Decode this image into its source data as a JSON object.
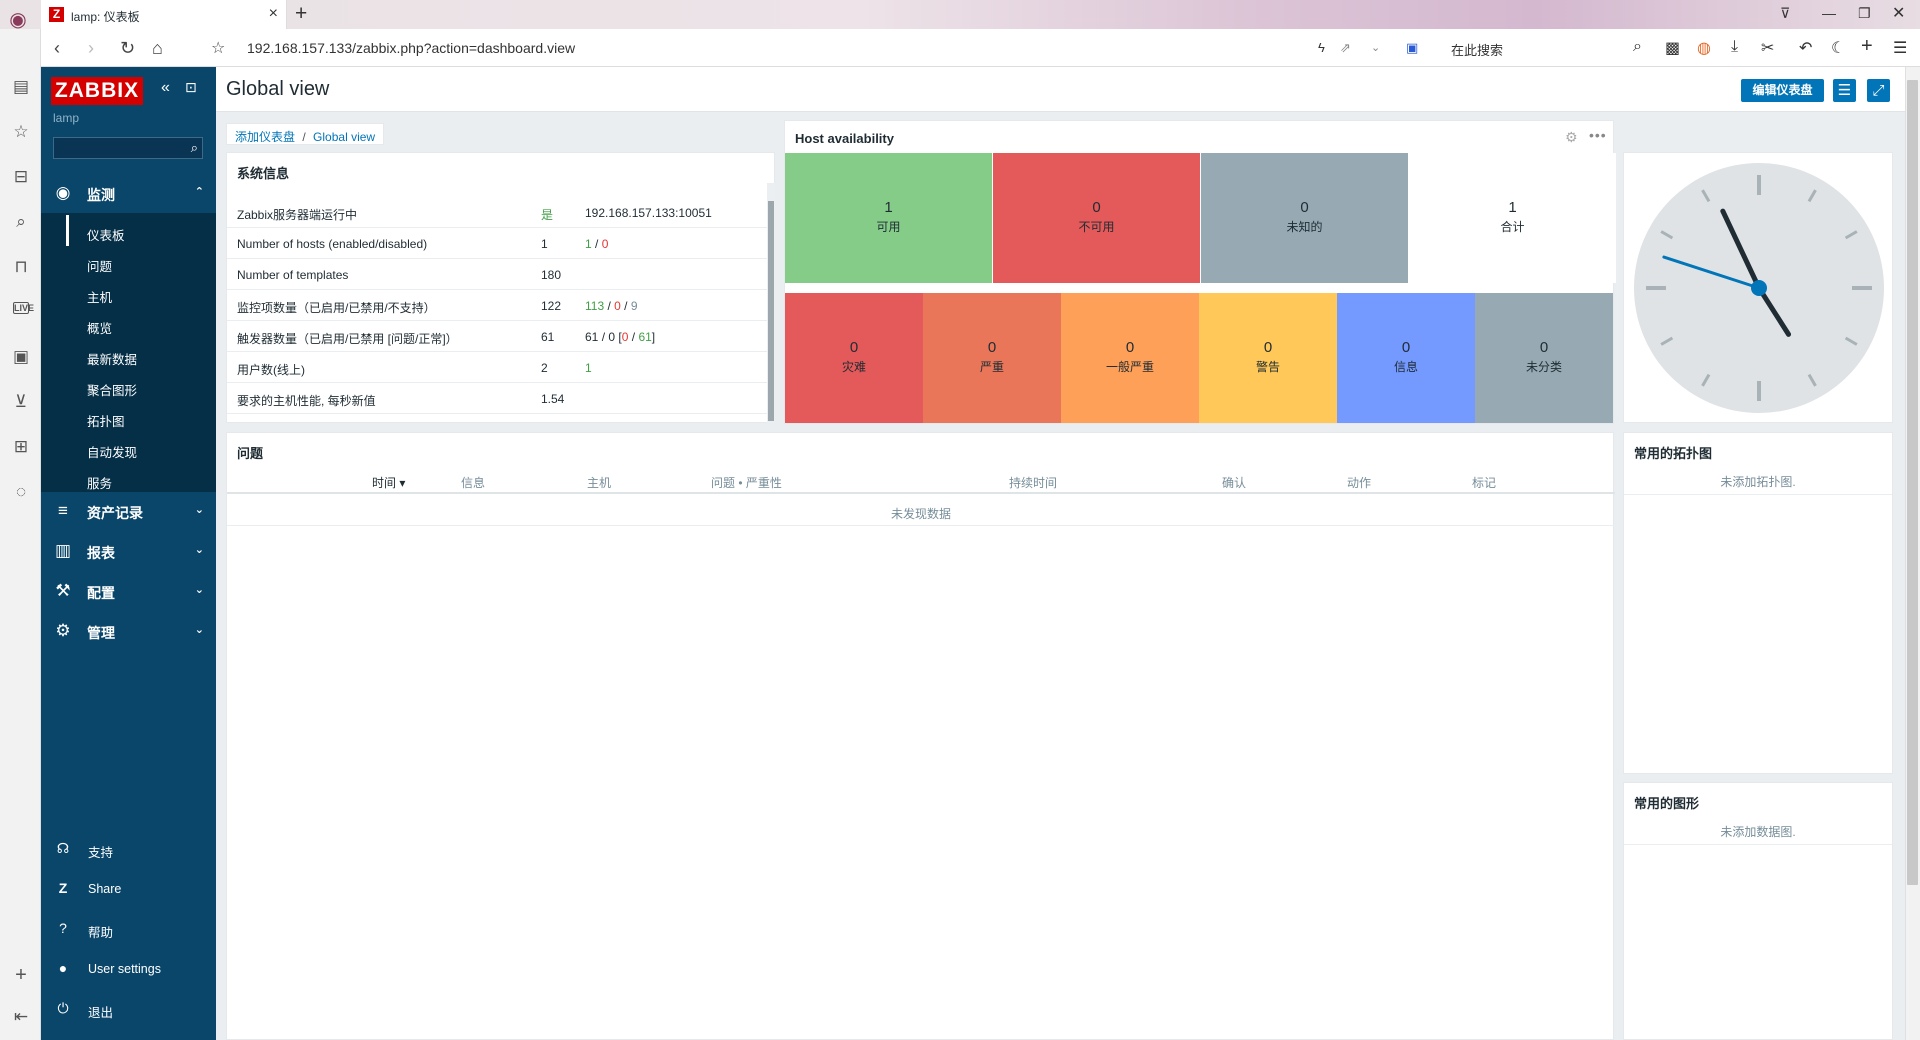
{
  "browser": {
    "tab_title": "lamp: 仪表板",
    "url": "192.168.157.133/zabbix.php?action=dashboard.view",
    "search_placeholder": "在此搜索"
  },
  "sidebar": {
    "logo": "ZABBIX",
    "instance": "lamp",
    "monitoring": {
      "label": "监测",
      "items": [
        "仪表板",
        "问题",
        "主机",
        "概览",
        "最新数据",
        "聚合图形",
        "拓扑图",
        "自动发现",
        "服务"
      ]
    },
    "groups": [
      "资产记录",
      "报表",
      "配置",
      "管理"
    ],
    "bottom": [
      "支持",
      "Share",
      "帮助",
      "User settings",
      "退出"
    ]
  },
  "header": {
    "title": "Global view",
    "edit_button": "编辑仪表盘"
  },
  "breadcrumb": {
    "parent": "添加仪表盘",
    "sep": "/",
    "current": "Global view"
  },
  "system_info": {
    "title": "系统信息",
    "rows": [
      {
        "param": "Zabbix服务器端运行中",
        "value": "是",
        "details": "192.168.157.133:10051"
      },
      {
        "param": "Number of hosts (enabled/disabled)",
        "value": "1",
        "d1": "1",
        "d2": "0"
      },
      {
        "param": "Number of templates",
        "value": "180",
        "details": ""
      },
      {
        "param": "监控项数量（已启用/已禁用/不支持）",
        "value": "122",
        "d1": "113",
        "d2": "0",
        "d3": "9"
      },
      {
        "param": "触发器数量（已启用/已禁用 [问题/正常]）",
        "value": "61",
        "d1": "61",
        "d2": "0",
        "d3": "0",
        "d4": "61"
      },
      {
        "param": "用户数(线上)",
        "value": "2",
        "d1": "1"
      },
      {
        "param": "要求的主机性能, 每秒新值",
        "value": "1.54",
        "details": ""
      }
    ]
  },
  "host_availability": {
    "title": "Host availability",
    "summary": [
      {
        "count": "1",
        "label": "可用",
        "color": "#86cc89"
      },
      {
        "count": "0",
        "label": "不可用",
        "color": "#e45959"
      },
      {
        "count": "0",
        "label": "未知的",
        "color": "#97aab3"
      },
      {
        "count": "1",
        "label": "合计",
        "color": "#ffffff"
      }
    ],
    "severity": [
      {
        "count": "0",
        "label": "灾难",
        "color": "#e45959"
      },
      {
        "count": "0",
        "label": "严重",
        "color": "#e97659"
      },
      {
        "count": "0",
        "label": "一般严重",
        "color": "#ffa059"
      },
      {
        "count": "0",
        "label": "警告",
        "color": "#ffc859"
      },
      {
        "count": "0",
        "label": "信息",
        "color": "#7499ff"
      },
      {
        "count": "0",
        "label": "未分类",
        "color": "#97aab3"
      }
    ]
  },
  "clock": {
    "hour": 4,
    "minute": 55,
    "second": 48
  },
  "problems": {
    "title": "问题",
    "columns": [
      "时间 ▾",
      "信息",
      "主机",
      "问题 • 严重性",
      "持续时间",
      "确认",
      "动作",
      "标记"
    ],
    "empty": "未发现数据"
  },
  "fav_maps": {
    "title": "常用的拓扑图",
    "empty": "未添加拓扑图."
  },
  "fav_graphs": {
    "title": "常用的图形",
    "empty": "未添加数据图."
  }
}
